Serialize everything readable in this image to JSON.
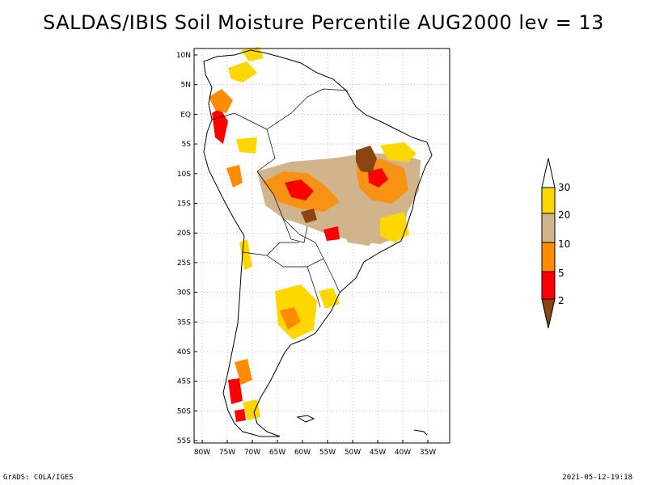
{
  "title": "SALDAS/IBIS Soil Moisture Percentile AUG2000 lev = 13",
  "footer": {
    "left": "GrADS: COLA/IGES",
    "right": "2021-05-12-19:18"
  },
  "map": {
    "lat_ticks": [
      "10N",
      "5N",
      "EQ",
      "5S",
      "10S",
      "15S",
      "20S",
      "25S",
      "30S",
      "35S",
      "40S",
      "45S",
      "50S",
      "55S"
    ],
    "lon_ticks": [
      "80W",
      "75W",
      "70W",
      "65W",
      "60W",
      "55W",
      "50W",
      "45W",
      "40W",
      "35W"
    ],
    "lat_range": [
      -56,
      12
    ],
    "lon_range": [
      -81,
      -33
    ],
    "grid": "dotted"
  },
  "legend": {
    "breaks": [
      "2",
      "5",
      "10",
      "20",
      "30"
    ],
    "colors": {
      "below_2": "#8B4513",
      "2_5": "#FF0000",
      "5_10": "#FF8C00",
      "10_20": "#D2B48C",
      "20_30": "#FFD700",
      "above_30": "#FFFFFF"
    }
  }
}
